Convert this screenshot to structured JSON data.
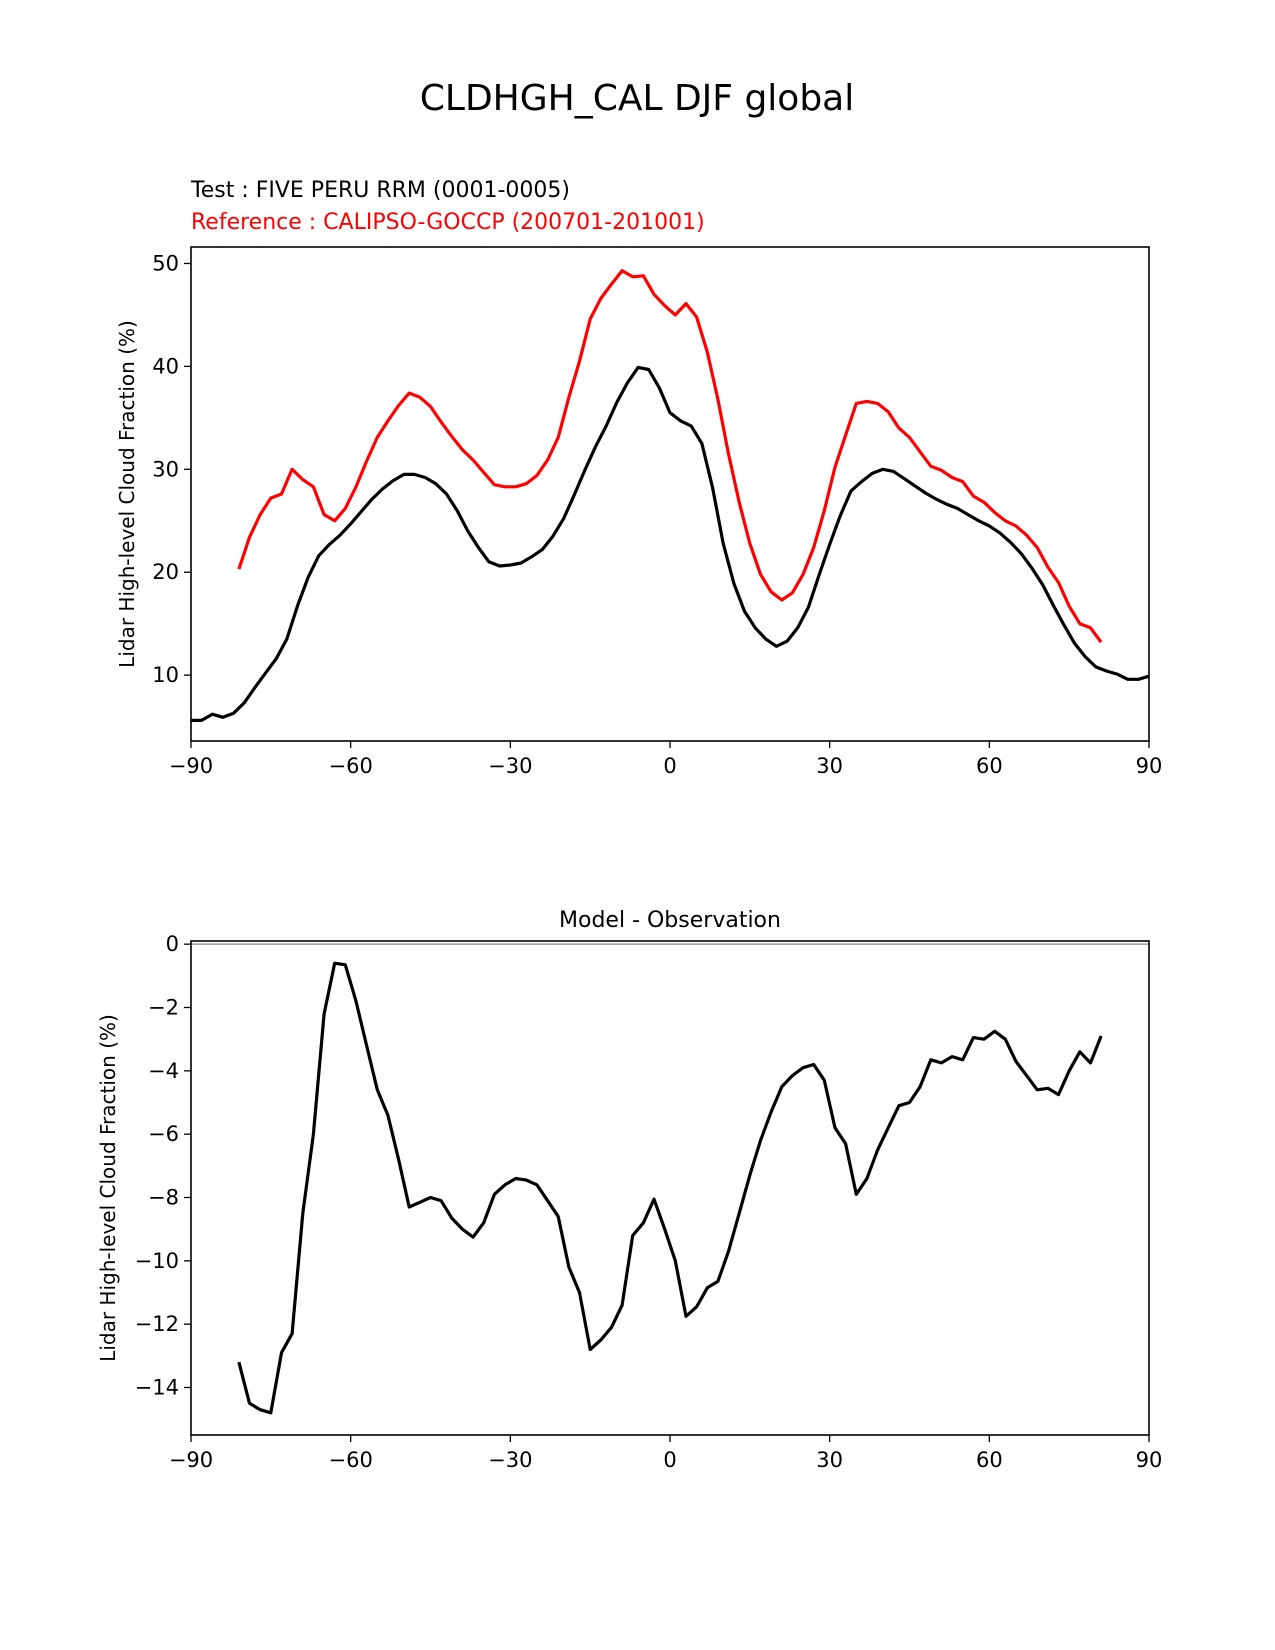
{
  "title": "CLDHGH_CAL DJF global",
  "chart_data": [
    {
      "type": "line",
      "legend": {
        "test": "Test : FIVE PERU RRM (0001-0005)",
        "reference": "Reference : CALIPSO-GOCCP (200701-201001)"
      },
      "xlabel": "",
      "ylabel": "Lidar High-level Cloud Fraction (%)",
      "xlim": [
        -90,
        90
      ],
      "ylim": [
        3.6,
        51.6
      ],
      "xticks": [
        -90,
        -60,
        -30,
        0,
        30,
        60,
        90
      ],
      "xtick_labels": [
        "−90",
        "−60",
        "−30",
        "0",
        "30",
        "60",
        "90"
      ],
      "yticks": [
        10,
        20,
        30,
        40,
        50
      ],
      "ytick_labels": [
        "10",
        "20",
        "30",
        "40",
        "50"
      ],
      "series": [
        {
          "name": "Test : FIVE PERU RRM (0001-0005)",
          "color": "#000000",
          "x": [
            -90,
            -88,
            -86,
            -84,
            -82,
            -80,
            -78,
            -76,
            -74,
            -72,
            -70,
            -68,
            -66,
            -64,
            -62,
            -60,
            -58,
            -56,
            -54,
            -52,
            -50,
            -48,
            -46,
            -44,
            -42,
            -40,
            -38,
            -36,
            -34,
            -32,
            -30,
            -28,
            -26,
            -24,
            -22,
            -20,
            -18,
            -16,
            -14,
            -12,
            -10,
            -8,
            -6,
            -4,
            -2,
            0,
            2,
            4,
            6,
            8,
            10,
            12,
            14,
            16,
            18,
            20,
            22,
            24,
            26,
            28,
            30,
            32,
            34,
            36,
            38,
            40,
            42,
            44,
            46,
            48,
            50,
            52,
            54,
            56,
            58,
            60,
            62,
            64,
            66,
            68,
            70,
            72,
            74,
            76,
            78,
            80,
            82,
            84,
            86,
            88,
            90
          ],
          "y": [
            5.6,
            5.6,
            6.2,
            5.9,
            6.3,
            7.3,
            8.8,
            10.2,
            11.6,
            13.5,
            16.7,
            19.5,
            21.6,
            22.7,
            23.6,
            24.7,
            25.9,
            27.1,
            28.1,
            28.9,
            29.5,
            29.5,
            29.2,
            28.6,
            27.6,
            26.0,
            24.0,
            22.4,
            21.0,
            20.6,
            20.7,
            20.9,
            21.5,
            22.2,
            23.5,
            25.2,
            27.5,
            29.9,
            32.2,
            34.2,
            36.5,
            38.4,
            39.9,
            39.7,
            37.9,
            35.5,
            34.7,
            34.2,
            32.5,
            28.2,
            22.8,
            18.9,
            16.2,
            14.6,
            13.5,
            12.8,
            13.3,
            14.6,
            16.6,
            19.7,
            22.7,
            25.5,
            27.9,
            28.8,
            29.6,
            30.0,
            29.8,
            29.1,
            28.4,
            27.7,
            27.1,
            26.6,
            26.2,
            25.6,
            25.0,
            24.5,
            23.8,
            22.9,
            21.8,
            20.4,
            18.8,
            16.8,
            14.9,
            13.1,
            11.8,
            10.8,
            10.4,
            10.1,
            9.6,
            9.6,
            9.9
          ]
        },
        {
          "name": "Reference : CALIPSO-GOCCP (200701-201001)",
          "color": "#ff0000",
          "x": [
            -81,
            -79,
            -77,
            -75,
            -73,
            -71,
            -69,
            -67,
            -65,
            -63,
            -61,
            -59,
            -57,
            -55,
            -53,
            -51,
            -49,
            -47,
            -45,
            -43,
            -41,
            -39,
            -37,
            -35,
            -33,
            -31,
            -29,
            -27,
            -25,
            -23,
            -21,
            -19,
            -17,
            -15,
            -13,
            -11,
            -9,
            -7,
            -5,
            -3,
            -1,
            1,
            3,
            5,
            7,
            9,
            11,
            13,
            15,
            17,
            19,
            21,
            23,
            25,
            27,
            29,
            31,
            33,
            35,
            37,
            39,
            41,
            43,
            45,
            47,
            49,
            51,
            53,
            55,
            57,
            59,
            61,
            63,
            65,
            67,
            69,
            71,
            73,
            75,
            77,
            79,
            81
          ],
          "y": [
            20.3,
            23.4,
            25.6,
            27.2,
            27.6,
            30.0,
            29.0,
            28.3,
            25.6,
            25.0,
            26.2,
            28.3,
            30.8,
            33.1,
            34.7,
            36.2,
            37.4,
            37.0,
            36.1,
            34.6,
            33.2,
            31.9,
            30.9,
            29.7,
            28.5,
            28.3,
            28.3,
            28.6,
            29.4,
            30.9,
            33.1,
            37.0,
            40.5,
            44.6,
            46.6,
            48.0,
            49.3,
            48.7,
            48.8,
            47.0,
            45.9,
            45.0,
            46.1,
            44.8,
            41.4,
            36.8,
            31.5,
            26.8,
            22.8,
            19.8,
            18.1,
            17.3,
            18.0,
            19.8,
            22.4,
            26.0,
            30.2,
            33.3,
            36.4,
            36.6,
            36.4,
            35.6,
            34.0,
            33.1,
            31.7,
            30.3,
            29.9,
            29.2,
            28.8,
            27.4,
            26.8,
            25.8,
            25.0,
            24.5,
            23.6,
            22.4,
            20.5,
            19.0,
            16.7,
            15.0,
            14.6,
            13.2
          ]
        }
      ]
    },
    {
      "type": "line",
      "title": "Model - Observation",
      "xlabel": "",
      "ylabel": "Lidar High-level Cloud Fraction (%)",
      "xlim": [
        -90,
        90
      ],
      "ylim": [
        -15.5,
        0.1
      ],
      "xticks": [
        -90,
        -60,
        -30,
        0,
        30,
        60,
        90
      ],
      "xtick_labels": [
        "−90",
        "−60",
        "−30",
        "0",
        "30",
        "60",
        "90"
      ],
      "yticks": [
        0,
        -2,
        -4,
        -6,
        -8,
        -10,
        -12,
        -14
      ],
      "ytick_labels": [
        "0",
        "−2",
        "−4",
        "−6",
        "−8",
        "−10",
        "−12",
        "−14"
      ],
      "zero_line": true,
      "series": [
        {
          "name": "Model - Observation",
          "color": "#000000",
          "x": [
            -81,
            -79,
            -77,
            -75,
            -73,
            -71,
            -69,
            -67,
            -65,
            -63,
            -61,
            -59,
            -57,
            -55,
            -53,
            -51,
            -49,
            -47,
            -45,
            -43,
            -41,
            -39,
            -37,
            -35,
            -33,
            -31,
            -29,
            -27,
            -25,
            -23,
            -21,
            -19,
            -17,
            -15,
            -13,
            -11,
            -9,
            -7,
            -5,
            -3,
            -1,
            1,
            3,
            5,
            7,
            9,
            11,
            13,
            15,
            17,
            19,
            21,
            23,
            25,
            27,
            29,
            31,
            33,
            35,
            37,
            39,
            41,
            43,
            45,
            47,
            49,
            51,
            53,
            55,
            57,
            59,
            61,
            63,
            65,
            67,
            69,
            71,
            73,
            75,
            77,
            79,
            81
          ],
          "y": [
            -13.2,
            -14.5,
            -14.7,
            -14.8,
            -12.9,
            -12.3,
            -8.5,
            -6.0,
            -2.2,
            -0.6,
            -0.65,
            -1.8,
            -3.2,
            -4.6,
            -5.4,
            -6.8,
            -8.3,
            -8.15,
            -8.0,
            -8.1,
            -8.65,
            -9.0,
            -9.25,
            -8.8,
            -7.9,
            -7.6,
            -7.4,
            -7.45,
            -7.6,
            -8.1,
            -8.6,
            -10.2,
            -11.0,
            -12.8,
            -12.5,
            -12.1,
            -11.4,
            -9.2,
            -8.8,
            -8.05,
            -9.0,
            -10.0,
            -11.75,
            -11.45,
            -10.85,
            -10.65,
            -9.7,
            -8.5,
            -7.3,
            -6.2,
            -5.3,
            -4.5,
            -4.15,
            -3.9,
            -3.8,
            -4.3,
            -5.8,
            -6.3,
            -7.9,
            -7.4,
            -6.5,
            -5.8,
            -5.1,
            -5.0,
            -4.5,
            -3.65,
            -3.75,
            -3.55,
            -3.65,
            -2.95,
            -3.0,
            -2.75,
            -3.0,
            -3.7,
            -4.15,
            -4.6,
            -4.55,
            -4.75,
            -4.0,
            -3.4,
            -3.75,
            -2.9
          ]
        }
      ]
    }
  ]
}
